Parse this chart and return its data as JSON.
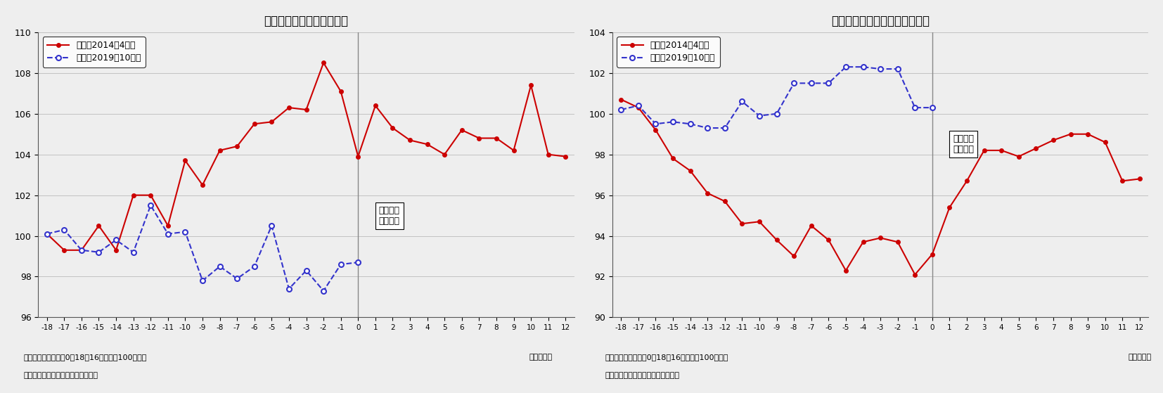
{
  "chart1": {
    "title": "消費増税前後の鉱工業生産",
    "legend1": "生産（2014年4月）",
    "legend2": "生産（2019年10月）",
    "x_ticks": [
      -18,
      -17,
      -16,
      -15,
      -14,
      -13,
      -12,
      -11,
      -10,
      -9,
      -8,
      -7,
      -6,
      -5,
      -4,
      -3,
      -2,
      -1,
      0,
      1,
      2,
      3,
      4,
      5,
      6,
      7,
      8,
      9,
      10,
      11,
      12
    ],
    "ylim": [
      96,
      110
    ],
    "yticks": [
      96,
      98,
      100,
      102,
      104,
      106,
      108,
      110
    ],
    "red_x": [
      -18,
      -17,
      -16,
      -15,
      -14,
      -13,
      -12,
      -11,
      -10,
      -9,
      -8,
      -7,
      -6,
      -5,
      -4,
      -3,
      -2,
      -1,
      0,
      1,
      2,
      3,
      4,
      5,
      6,
      7,
      8,
      9,
      10,
      11,
      12
    ],
    "red_y": [
      100.1,
      99.3,
      99.3,
      100.5,
      99.3,
      102.0,
      102.0,
      100.5,
      103.7,
      102.5,
      104.2,
      104.4,
      105.5,
      105.6,
      106.3,
      106.2,
      108.5,
      107.1,
      103.9,
      106.4,
      105.3,
      104.7,
      104.5,
      104.0,
      105.2,
      104.8,
      104.8,
      104.2,
      107.4,
      104.0,
      103.9
    ],
    "blue_x": [
      -18,
      -17,
      -16,
      -15,
      -14,
      -13,
      -12,
      -11,
      -10,
      -9,
      -8,
      -7,
      -6,
      -5,
      -4,
      -3,
      -2,
      -1,
      0
    ],
    "blue_y": [
      100.1,
      100.3,
      99.3,
      99.2,
      99.8,
      99.2,
      101.5,
      100.1,
      100.2,
      97.8,
      98.5,
      97.9,
      98.5,
      100.5,
      97.4,
      98.3,
      97.3,
      98.6,
      98.7
    ],
    "annotation_text": "消費税率\n引き上げ",
    "ann_x": 1.2,
    "ann_y": 101.0,
    "note1": "（注）消費増税月＝0、18～16ヵ月前＝100とした",
    "note2": "（資料）経済産業省「鉱工業指数」",
    "xlabel": "（経過月）"
  },
  "chart2": {
    "title": "消費増税前後の在庫指数の動き",
    "legend1": "在庫（2014年4月）",
    "legend2": "在庫（2019年10月）",
    "x_ticks": [
      -18,
      -17,
      -16,
      -15,
      -14,
      -13,
      -12,
      -11,
      -10,
      -9,
      -8,
      -7,
      -6,
      -5,
      -4,
      -3,
      -2,
      -1,
      0,
      1,
      2,
      3,
      4,
      5,
      6,
      7,
      8,
      9,
      10,
      11,
      12
    ],
    "ylim": [
      90,
      104
    ],
    "yticks": [
      90,
      92,
      94,
      96,
      98,
      100,
      102,
      104
    ],
    "red_x": [
      -18,
      -17,
      -16,
      -15,
      -14,
      -13,
      -12,
      -11,
      -10,
      -9,
      -8,
      -7,
      -6,
      -5,
      -4,
      -3,
      -2,
      -1,
      0,
      1,
      2,
      3,
      4,
      5,
      6,
      7,
      8,
      9,
      10,
      11,
      12
    ],
    "red_y": [
      100.7,
      100.3,
      99.2,
      97.8,
      97.2,
      96.1,
      95.7,
      94.6,
      94.7,
      93.8,
      93.0,
      94.5,
      93.8,
      92.3,
      93.7,
      93.9,
      93.7,
      92.1,
      93.1,
      95.4,
      96.7,
      98.2,
      98.2,
      97.9,
      98.3,
      98.7,
      99.0,
      99.0,
      98.6,
      96.7,
      96.8
    ],
    "blue_x": [
      -18,
      -17,
      -16,
      -15,
      -14,
      -13,
      -12,
      -11,
      -10,
      -9,
      -8,
      -7,
      -6,
      -5,
      -4,
      -3,
      -2,
      -1,
      0
    ],
    "blue_y": [
      100.2,
      100.4,
      99.5,
      99.6,
      99.5,
      99.3,
      99.3,
      100.6,
      99.9,
      100.0,
      101.5,
      101.5,
      101.5,
      102.3,
      102.3,
      102.2,
      102.2,
      100.3,
      100.3
    ],
    "annotation_text": "消費税率\n引き上げ",
    "ann_x": 1.2,
    "ann_y": 98.5,
    "note1": "（注）消費増税月＝0、18～16ヵ月前＝100とした",
    "note2": "（資料）経済産業省「鉱工業指数」",
    "xlabel": "（経過月）"
  },
  "red_color": "#cc0000",
  "blue_color": "#3333cc",
  "background_color": "#eeeeee",
  "vline_color": "#888888"
}
